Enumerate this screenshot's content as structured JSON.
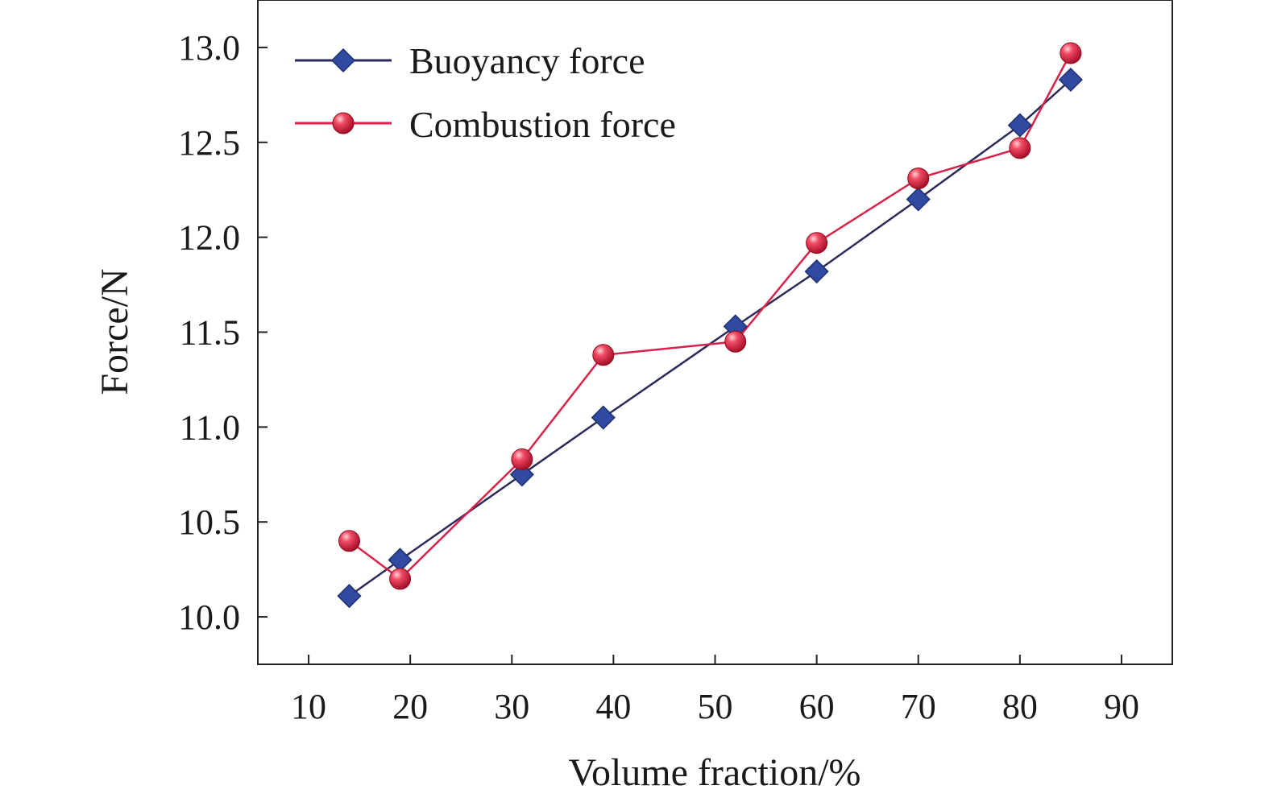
{
  "chart_data": {
    "type": "line",
    "xlabel": "Volume fraction/%",
    "ylabel": "Force/N",
    "xlim": [
      5,
      95
    ],
    "ylim": [
      9.75,
      13.25
    ],
    "xticks": [
      10,
      20,
      30,
      40,
      50,
      60,
      70,
      80,
      90
    ],
    "yticks": [
      10.0,
      10.5,
      11.0,
      11.5,
      12.0,
      12.5,
      13.0
    ],
    "xtick_labels": [
      "10",
      "20",
      "30",
      "40",
      "50",
      "60",
      "70",
      "80",
      "90"
    ],
    "ytick_labels": [
      "10.0",
      "10.5",
      "11.0",
      "11.5",
      "12.0",
      "12.5",
      "13.0"
    ],
    "grid": false,
    "legend_position": "top-left",
    "series": [
      {
        "name": "Buoyancy force",
        "marker": "diamond",
        "line_color": "#2b2b5a",
        "marker_color": "#2f4aa0",
        "x": [
          14,
          19,
          31,
          39,
          52,
          60,
          70,
          80,
          85
        ],
        "y": [
          10.11,
          10.3,
          10.75,
          11.05,
          11.53,
          11.82,
          12.2,
          12.59,
          12.83
        ]
      },
      {
        "name": "Combustion force",
        "marker": "sphere",
        "line_color": "#d9224a",
        "marker_color": "#e01f3d",
        "x": [
          14,
          19,
          31,
          39,
          52,
          60,
          70,
          80,
          85
        ],
        "y": [
          10.4,
          10.2,
          10.83,
          11.38,
          11.45,
          11.97,
          12.31,
          12.47,
          12.97
        ]
      }
    ]
  }
}
